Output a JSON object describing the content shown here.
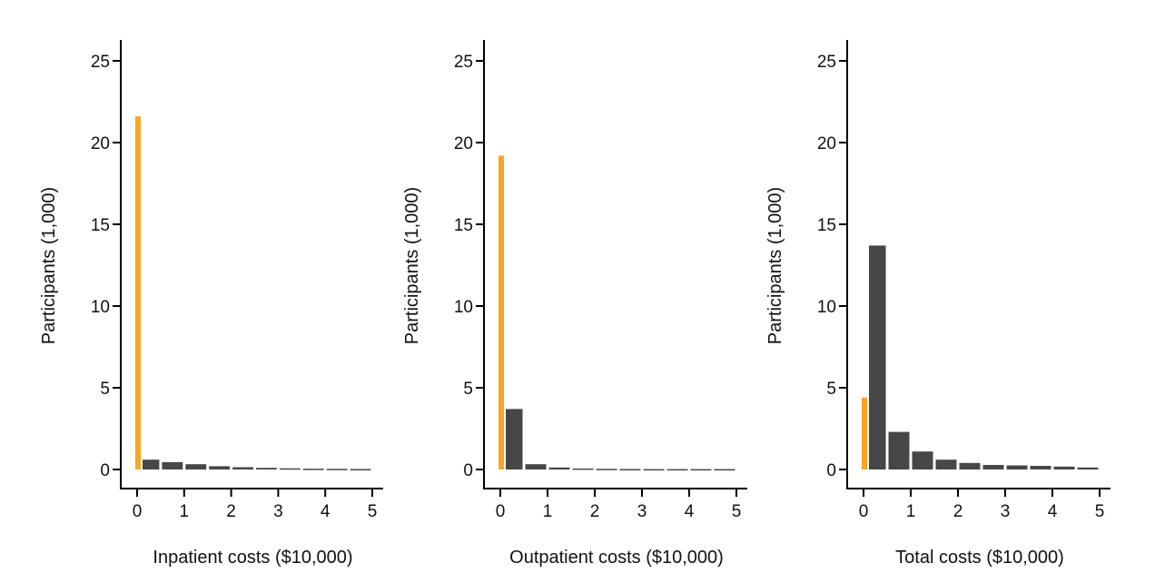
{
  "colors": {
    "zero_bar": "#f5a623",
    "bar": "#474747",
    "axis": "#000000"
  },
  "chart_data": [
    {
      "type": "bar",
      "xlabel": "Inpatient costs ($10,000)",
      "ylabel": "Participants (1,000)",
      "xlim": [
        0,
        5
      ],
      "ylim": [
        0,
        25
      ],
      "xticks": [
        0,
        1,
        2,
        3,
        4,
        5
      ],
      "yticks": [
        0,
        5,
        10,
        15,
        20,
        25
      ],
      "zero_cost_bar": {
        "x": 0,
        "value": 21.6
      },
      "bins": [
        {
          "x0": 0,
          "x1": 0.5,
          "value": 0.6
        },
        {
          "x0": 0.5,
          "x1": 1.0,
          "value": 0.45
        },
        {
          "x0": 1.0,
          "x1": 1.5,
          "value": 0.32
        },
        {
          "x0": 1.5,
          "x1": 2.0,
          "value": 0.2
        },
        {
          "x0": 2.0,
          "x1": 2.5,
          "value": 0.14
        },
        {
          "x0": 2.5,
          "x1": 3.0,
          "value": 0.1
        },
        {
          "x0": 3.0,
          "x1": 3.5,
          "value": 0.07
        },
        {
          "x0": 3.5,
          "x1": 4.0,
          "value": 0.05
        },
        {
          "x0": 4.0,
          "x1": 4.5,
          "value": 0.04
        },
        {
          "x0": 4.5,
          "x1": 5.0,
          "value": 0.03
        }
      ]
    },
    {
      "type": "bar",
      "xlabel": "Outpatient costs ($10,000)",
      "ylabel": "Participants (1,000)",
      "xlim": [
        0,
        5
      ],
      "ylim": [
        0,
        25
      ],
      "xticks": [
        0,
        1,
        2,
        3,
        4,
        5
      ],
      "yticks": [
        0,
        5,
        10,
        15,
        20,
        25
      ],
      "zero_cost_bar": {
        "x": 0,
        "value": 19.2
      },
      "bins": [
        {
          "x0": 0,
          "x1": 0.5,
          "value": 3.7
        },
        {
          "x0": 0.5,
          "x1": 1.0,
          "value": 0.32
        },
        {
          "x0": 1.0,
          "x1": 1.5,
          "value": 0.12
        },
        {
          "x0": 1.5,
          "x1": 2.0,
          "value": 0.06
        },
        {
          "x0": 2.0,
          "x1": 2.5,
          "value": 0.04
        },
        {
          "x0": 2.5,
          "x1": 3.0,
          "value": 0.03
        },
        {
          "x0": 3.0,
          "x1": 3.5,
          "value": 0.02
        },
        {
          "x0": 3.5,
          "x1": 4.0,
          "value": 0.02
        },
        {
          "x0": 4.0,
          "x1": 4.5,
          "value": 0.02
        },
        {
          "x0": 4.5,
          "x1": 5.0,
          "value": 0.02
        }
      ]
    },
    {
      "type": "bar",
      "xlabel": "Total costs ($10,000)",
      "ylabel": "Participants (1,000)",
      "xlim": [
        0,
        5
      ],
      "ylim": [
        0,
        25
      ],
      "xticks": [
        0,
        1,
        2,
        3,
        4,
        5
      ],
      "yticks": [
        0,
        5,
        10,
        15,
        20,
        25
      ],
      "zero_cost_bar": {
        "x": 0,
        "value": 4.4
      },
      "bins": [
        {
          "x0": 0,
          "x1": 0.5,
          "value": 13.7
        },
        {
          "x0": 0.5,
          "x1": 1.0,
          "value": 2.3
        },
        {
          "x0": 1.0,
          "x1": 1.5,
          "value": 1.1
        },
        {
          "x0": 1.5,
          "x1": 2.0,
          "value": 0.6
        },
        {
          "x0": 2.0,
          "x1": 2.5,
          "value": 0.4
        },
        {
          "x0": 2.5,
          "x1": 3.0,
          "value": 0.28
        },
        {
          "x0": 3.0,
          "x1": 3.5,
          "value": 0.25
        },
        {
          "x0": 3.5,
          "x1": 4.0,
          "value": 0.22
        },
        {
          "x0": 4.0,
          "x1": 4.5,
          "value": 0.18
        },
        {
          "x0": 4.5,
          "x1": 5.0,
          "value": 0.12
        }
      ]
    }
  ]
}
